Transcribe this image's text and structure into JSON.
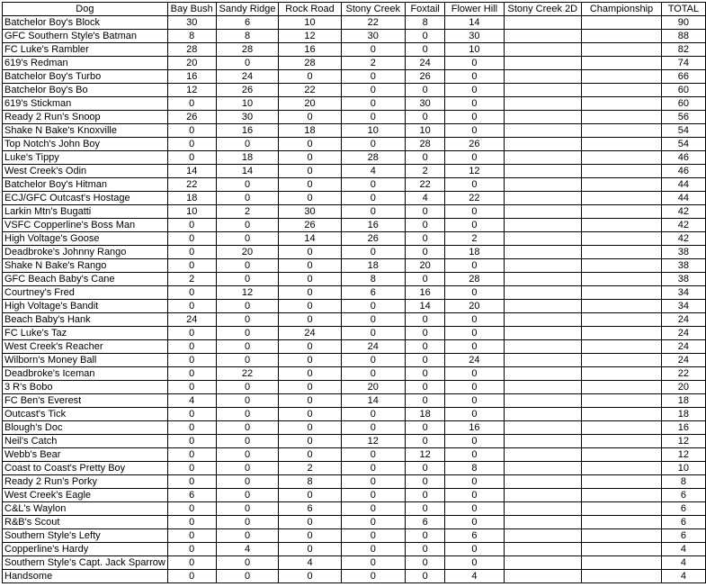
{
  "table": {
    "columns": [
      "Dog",
      "Bay Bush",
      "Sandy Ridge",
      "Rock Road",
      "Stony Creek",
      "Foxtail",
      "Flower Hill",
      "Stony Creek 2D",
      "Championship",
      "TOTAL"
    ],
    "rows": [
      [
        "Batchelor Boy's Block",
        30,
        6,
        10,
        22,
        8,
        14,
        null,
        null,
        90
      ],
      [
        "GFC Southern Style's Batman",
        8,
        8,
        12,
        30,
        0,
        30,
        null,
        null,
        88
      ],
      [
        "FC Luke's Rambler",
        28,
        28,
        16,
        0,
        0,
        10,
        null,
        null,
        82
      ],
      [
        "619's Redman",
        20,
        0,
        28,
        2,
        24,
        0,
        null,
        null,
        74
      ],
      [
        "Batchelor Boy's Turbo",
        16,
        24,
        0,
        0,
        26,
        0,
        null,
        null,
        66
      ],
      [
        "Batchelor Boy's Bo",
        12,
        26,
        22,
        0,
        0,
        0,
        null,
        null,
        60
      ],
      [
        "619's Stickman",
        0,
        10,
        20,
        0,
        30,
        0,
        null,
        null,
        60
      ],
      [
        "Ready 2 Run's Snoop",
        26,
        30,
        0,
        0,
        0,
        0,
        null,
        null,
        56
      ],
      [
        "Shake N Bake's Knoxville",
        0,
        16,
        18,
        10,
        10,
        0,
        null,
        null,
        54
      ],
      [
        "Top Notch's John Boy",
        0,
        0,
        0,
        0,
        28,
        26,
        null,
        null,
        54
      ],
      [
        "Luke's Tippy",
        0,
        18,
        0,
        28,
        0,
        0,
        null,
        null,
        46
      ],
      [
        "West Creek's Odin",
        14,
        14,
        0,
        4,
        2,
        12,
        null,
        null,
        46
      ],
      [
        "Batchelor Boy's Hitman",
        22,
        0,
        0,
        0,
        22,
        0,
        null,
        null,
        44
      ],
      [
        "ECJ/GFC Outcast's Hostage",
        18,
        0,
        0,
        0,
        4,
        22,
        null,
        null,
        44
      ],
      [
        "Larkin Mtn's Bugatti",
        10,
        2,
        30,
        0,
        0,
        0,
        null,
        null,
        42
      ],
      [
        "VSFC Copperline's Boss Man",
        0,
        0,
        26,
        16,
        0,
        0,
        null,
        null,
        42
      ],
      [
        "High Voltage's Goose",
        0,
        0,
        14,
        26,
        0,
        2,
        null,
        null,
        42
      ],
      [
        "Deadbroke's Johnny Rango",
        0,
        20,
        0,
        0,
        0,
        18,
        null,
        null,
        38
      ],
      [
        "Shake N Bake's Rango",
        0,
        0,
        0,
        18,
        20,
        0,
        null,
        null,
        38
      ],
      [
        "GFC Beach Baby's Cane",
        2,
        0,
        0,
        8,
        0,
        28,
        null,
        null,
        38
      ],
      [
        "Courtney's Fred",
        0,
        12,
        0,
        6,
        16,
        0,
        null,
        null,
        34
      ],
      [
        "High Voltage's Bandit",
        0,
        0,
        0,
        0,
        14,
        20,
        null,
        null,
        34
      ],
      [
        "Beach Baby's Hank",
        24,
        0,
        0,
        0,
        0,
        0,
        null,
        null,
        24
      ],
      [
        "FC Luke's Taz",
        0,
        0,
        24,
        0,
        0,
        0,
        null,
        null,
        24
      ],
      [
        "West Creek's Reacher",
        0,
        0,
        0,
        24,
        0,
        0,
        null,
        null,
        24
      ],
      [
        "Wilborn's Money Ball",
        0,
        0,
        0,
        0,
        0,
        24,
        null,
        null,
        24
      ],
      [
        "Deadbroke's Iceman",
        0,
        22,
        0,
        0,
        0,
        0,
        null,
        null,
        22
      ],
      [
        "3 R's Bobo",
        0,
        0,
        0,
        20,
        0,
        0,
        null,
        null,
        20
      ],
      [
        "FC Ben's Everest",
        4,
        0,
        0,
        14,
        0,
        0,
        null,
        null,
        18
      ],
      [
        "Outcast's Tick",
        0,
        0,
        0,
        0,
        18,
        0,
        null,
        null,
        18
      ],
      [
        "Blough's Doc",
        0,
        0,
        0,
        0,
        0,
        16,
        null,
        null,
        16
      ],
      [
        "Neil's Catch",
        0,
        0,
        0,
        12,
        0,
        0,
        null,
        null,
        12
      ],
      [
        "Webb's Bear",
        0,
        0,
        0,
        0,
        12,
        0,
        null,
        null,
        12
      ],
      [
        "Coast to Coast's Pretty Boy",
        0,
        0,
        2,
        0,
        0,
        8,
        null,
        null,
        10
      ],
      [
        "Ready 2 Run's Porky",
        0,
        0,
        8,
        0,
        0,
        0,
        null,
        null,
        8
      ],
      [
        "West Creek's Eagle",
        6,
        0,
        0,
        0,
        0,
        0,
        null,
        null,
        6
      ],
      [
        "C&L's Waylon",
        0,
        0,
        6,
        0,
        0,
        0,
        null,
        null,
        6
      ],
      [
        "R&B's Scout",
        0,
        0,
        0,
        0,
        6,
        0,
        null,
        null,
        6
      ],
      [
        "Southern Style's Lefty",
        0,
        0,
        0,
        0,
        0,
        6,
        null,
        null,
        6
      ],
      [
        "Copperline's Hardy",
        0,
        4,
        0,
        0,
        0,
        0,
        null,
        null,
        4
      ],
      [
        "Southern Style's Capt. Jack Sparrow",
        0,
        0,
        4,
        0,
        0,
        0,
        null,
        null,
        4
      ],
      [
        "Handsome",
        0,
        0,
        0,
        0,
        0,
        4,
        null,
        null,
        4
      ]
    ]
  }
}
